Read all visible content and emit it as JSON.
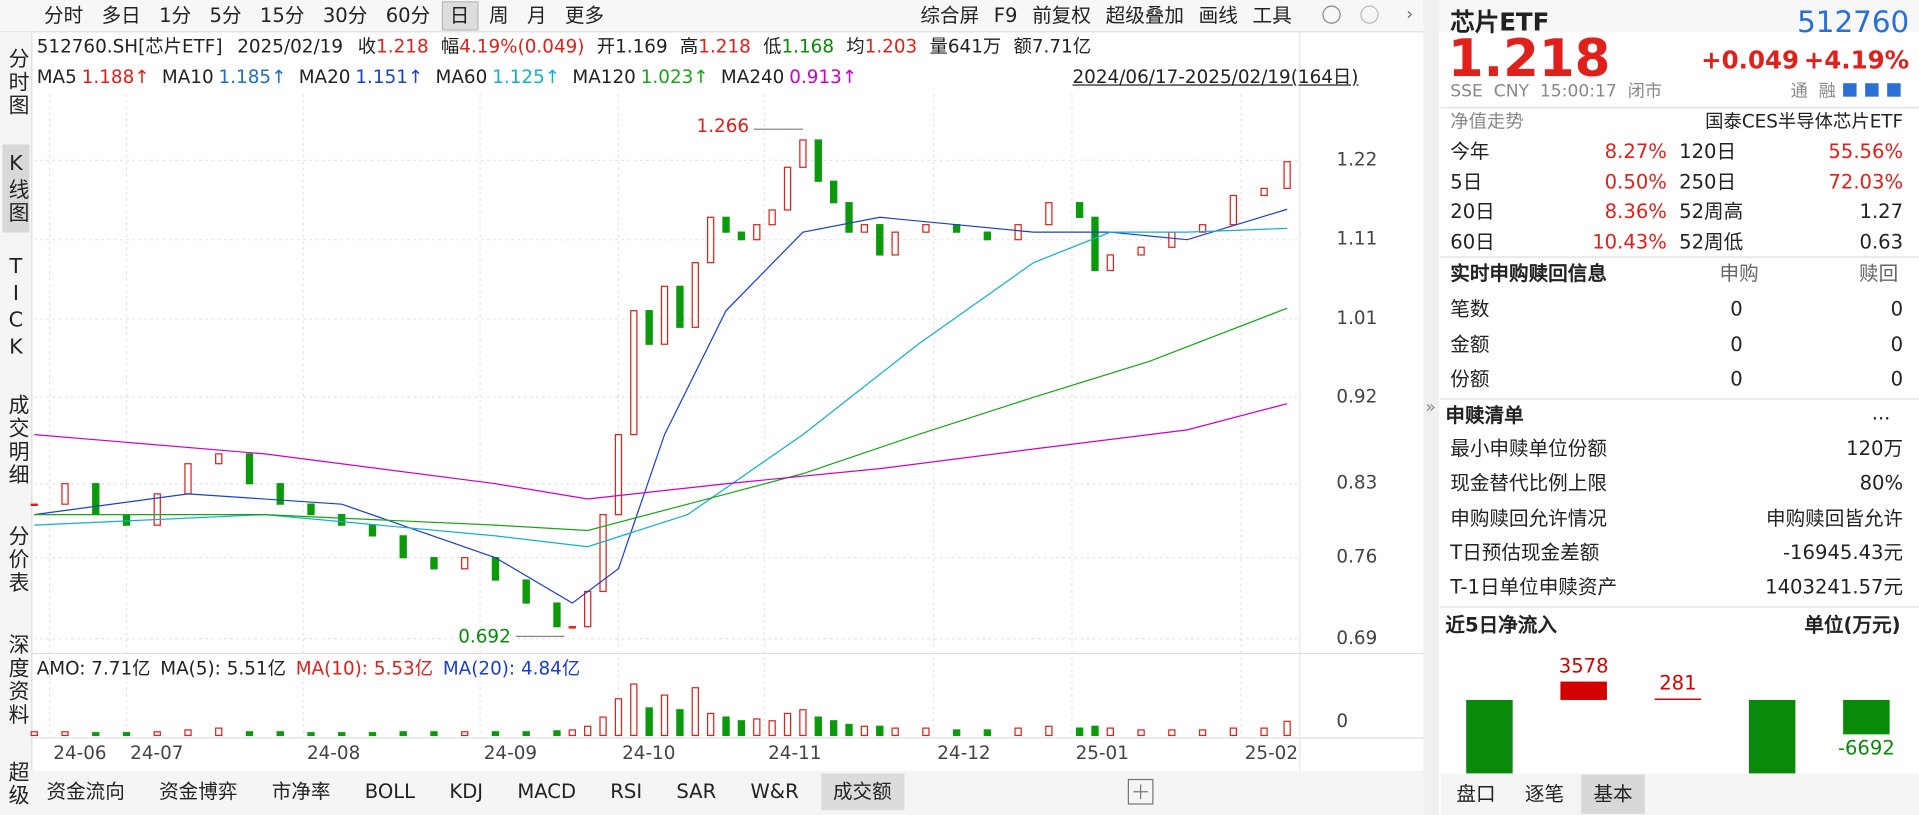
{
  "toolbar": {
    "periods": [
      "分时",
      "多日",
      "1分",
      "5分",
      "15分",
      "30分",
      "60分",
      "日",
      "周",
      "月",
      "更多"
    ],
    "active_period": "日",
    "tools": [
      "综合屏",
      "F9",
      "前复权",
      "超级叠加",
      "画线",
      "工具"
    ]
  },
  "left_tabs": [
    "分时图",
    "K线图",
    "TICK",
    "成交明细",
    "分价表",
    "深度资料",
    "超级"
  ],
  "active_tab": "K线图",
  "info": {
    "code": "512760.SH[芯片ETF]",
    "date": "2025/02/19",
    "items": [
      {
        "label": "收",
        "value": "1.218",
        "color": "#e0201a"
      },
      {
        "label": "幅",
        "value": "4.19%(0.049)",
        "color": "#e0201a"
      },
      {
        "label": "开",
        "value": "1.169",
        "color": "#222222"
      },
      {
        "label": "高",
        "value": "1.218",
        "color": "#e0201a"
      },
      {
        "label": "低",
        "value": "1.168",
        "color": "#0a8a0a"
      },
      {
        "label": "均",
        "value": "1.203",
        "color": "#e0201a"
      },
      {
        "label": "量",
        "value": "641万",
        "color": "#222222"
      },
      {
        "label": "额",
        "value": "7.71亿",
        "color": "#222222"
      }
    ]
  },
  "ma_legend": [
    {
      "name": "MA5",
      "value": "1.188↑",
      "color": "#e0201a"
    },
    {
      "name": "MA10",
      "value": "1.185↑",
      "color": "#1f6fc0"
    },
    {
      "name": "MA20",
      "value": "1.151↑",
      "color": "#1a3fd0"
    },
    {
      "name": "MA60",
      "value": "1.125↑",
      "color": "#12b0c8"
    },
    {
      "name": "MA120",
      "value": "1.023↑",
      "color": "#19a519"
    },
    {
      "name": "MA240",
      "value": "0.913↑",
      "color": "#cc00cc"
    }
  ],
  "range": "2024/06/17-2025/02/19(164日)",
  "chart_data": {
    "type": "candlestick",
    "log_scale": true,
    "xlim": [
      0,
      164
    ],
    "ylim": [
      0.682,
      1.32
    ],
    "yticks": [
      0.69,
      0.76,
      0.83,
      0.92,
      1.01,
      1.11,
      1.22
    ],
    "xticks": [
      {
        "value": 2,
        "label": "24-06"
      },
      {
        "value": 12,
        "label": "24-07"
      },
      {
        "value": 35,
        "label": "24-08"
      },
      {
        "value": 58,
        "label": "24-09"
      },
      {
        "value": 76,
        "label": "24-10"
      },
      {
        "value": 95,
        "label": "24-11"
      },
      {
        "value": 117,
        "label": "24-12"
      },
      {
        "value": 135,
        "label": "25-01"
      },
      {
        "value": 157,
        "label": "25-02"
      }
    ],
    "colors": {
      "up": "#e0201a",
      "down": "#0a9a0a"
    },
    "x": [
      0,
      4,
      8,
      12,
      16,
      20,
      24,
      28,
      32,
      36,
      40,
      44,
      48,
      52,
      56,
      60,
      64,
      68,
      70,
      72,
      74,
      76,
      78,
      80,
      82,
      84,
      86,
      88,
      90,
      92,
      94,
      96,
      98,
      100,
      102,
      104,
      106,
      108,
      110,
      112,
      116,
      120,
      124,
      128,
      132,
      136,
      138,
      140,
      144,
      148,
      152,
      156,
      160,
      163
    ],
    "close": [
      0.81,
      0.83,
      0.8,
      0.79,
      0.82,
      0.85,
      0.86,
      0.83,
      0.81,
      0.8,
      0.79,
      0.78,
      0.76,
      0.75,
      0.76,
      0.74,
      0.72,
      0.7,
      0.7,
      0.73,
      0.8,
      0.88,
      1.02,
      0.98,
      1.05,
      1.0,
      1.08,
      1.14,
      1.12,
      1.11,
      1.13,
      1.15,
      1.21,
      1.25,
      1.19,
      1.16,
      1.12,
      1.13,
      1.09,
      1.12,
      1.13,
      1.12,
      1.11,
      1.13,
      1.16,
      1.14,
      1.07,
      1.09,
      1.1,
      1.12,
      1.13,
      1.17,
      1.18,
      1.218
    ],
    "series": [
      {
        "name": "MA20",
        "color": "#1a3fd0",
        "x": [
          0,
          20,
          40,
          60,
          70,
          76,
          82,
          90,
          100,
          110,
          120,
          130,
          140,
          150,
          163
        ],
        "values": [
          0.8,
          0.82,
          0.81,
          0.76,
          0.72,
          0.75,
          0.88,
          1.02,
          1.12,
          1.14,
          1.13,
          1.12,
          1.12,
          1.11,
          1.151
        ]
      },
      {
        "name": "MA60",
        "color": "#12b0c8",
        "x": [
          0,
          30,
          60,
          72,
          85,
          100,
          115,
          130,
          140,
          150,
          163
        ],
        "values": [
          0.79,
          0.8,
          0.78,
          0.77,
          0.8,
          0.88,
          0.98,
          1.08,
          1.12,
          1.12,
          1.125
        ]
      },
      {
        "name": "MA120",
        "color": "#19a519",
        "x": [
          0,
          30,
          60,
          72,
          85,
          100,
          115,
          130,
          145,
          163
        ],
        "values": [
          0.8,
          0.8,
          0.79,
          0.785,
          0.81,
          0.84,
          0.88,
          0.92,
          0.96,
          1.023
        ]
      },
      {
        "name": "MA240",
        "color": "#cc00cc",
        "x": [
          0,
          30,
          60,
          72,
          90,
          110,
          130,
          150,
          163
        ],
        "values": [
          0.88,
          0.86,
          0.83,
          0.815,
          0.83,
          0.845,
          0.865,
          0.885,
          0.913
        ]
      }
    ],
    "annotations": [
      {
        "x": 100,
        "value": 1.266,
        "color": "#e0201a"
      },
      {
        "x": 69,
        "value": 0.692,
        "color": "#0a8a0a"
      }
    ]
  },
  "volume_chart": {
    "type": "bar",
    "amo": [
      {
        "text": "AMO: 7.71亿",
        "color": "#222222"
      },
      {
        "text": "MA(5): 5.51亿",
        "color": "#222222"
      },
      {
        "text": "MA(10): 5.53亿",
        "color": "#e0201a"
      },
      {
        "text": "MA(20): 4.84亿",
        "color": "#1a3fd0"
      }
    ],
    "ylim": [
      0,
      30
    ],
    "yticks": [
      0
    ],
    "values": [
      2,
      2,
      1.5,
      1.5,
      2,
      3,
      4,
      2,
      2,
      1.5,
      1.5,
      1.5,
      2,
      2,
      2,
      2,
      2,
      2.5,
      3,
      5,
      10,
      20,
      28,
      15,
      22,
      14,
      26,
      12,
      10,
      8,
      9,
      8,
      12,
      14,
      10,
      8,
      6,
      5,
      5,
      4,
      4,
      3,
      3,
      4,
      5,
      4,
      5,
      4,
      3,
      3,
      3,
      4,
      4,
      7.71
    ]
  },
  "bottom_tabs": [
    "资金流向",
    "资金博弈",
    "市净率",
    "BOLL",
    "KDJ",
    "MACD",
    "RSI",
    "SAR",
    "W&R",
    "成交额"
  ],
  "active_bottom_tab": "成交额",
  "quote": {
    "name": "芯片ETF",
    "code": "512760",
    "price": "1.218",
    "change": "+0.049",
    "pct": "+4.19%",
    "meta": "SSE  CNY  15:00:17  闭市",
    "badges": "通  融"
  },
  "nav": {
    "label": "净值走势",
    "index": "国泰CES半导体芯片ETF"
  },
  "returns": [
    [
      "今年",
      "8.27%",
      "120日",
      "55.56%"
    ],
    [
      "5日",
      "0.50%",
      "250日",
      "72.03%"
    ],
    [
      "20日",
      "8.36%",
      "52周高",
      "1.27"
    ],
    [
      "60日",
      "10.43%",
      "52周低",
      "0.63"
    ]
  ],
  "subscription": {
    "header": [
      "实时申购赎回信息",
      "申购",
      "赎回"
    ],
    "rows": [
      [
        "笔数",
        0,
        0
      ],
      [
        "金额",
        0,
        0
      ],
      [
        "份额",
        0,
        0
      ]
    ]
  },
  "creation_list": {
    "title": "申赎清单",
    "more": "...",
    "items": [
      [
        "最小申赎单位份额",
        "120万"
      ],
      [
        "现金替代比例上限",
        "80%"
      ],
      [
        "申购赎回允许情况",
        "申购赎回皆允许"
      ],
      [
        "T日预估现金差额",
        "-16945.43元"
      ],
      [
        "T-1日单位申赎资产",
        "1403241.57元"
      ]
    ]
  },
  "flow_chart": {
    "type": "bar",
    "title": "近5日净流入",
    "unit": "单位(万元)",
    "values": [
      -14500,
      3578,
      281,
      -14500,
      -6692
    ],
    "colors": {
      "up": "#d40000",
      "down": "#0a8a0a"
    }
  },
  "side_tabs": [
    "盘口",
    "逐笔",
    "基本"
  ],
  "active_side_tab": "基本"
}
